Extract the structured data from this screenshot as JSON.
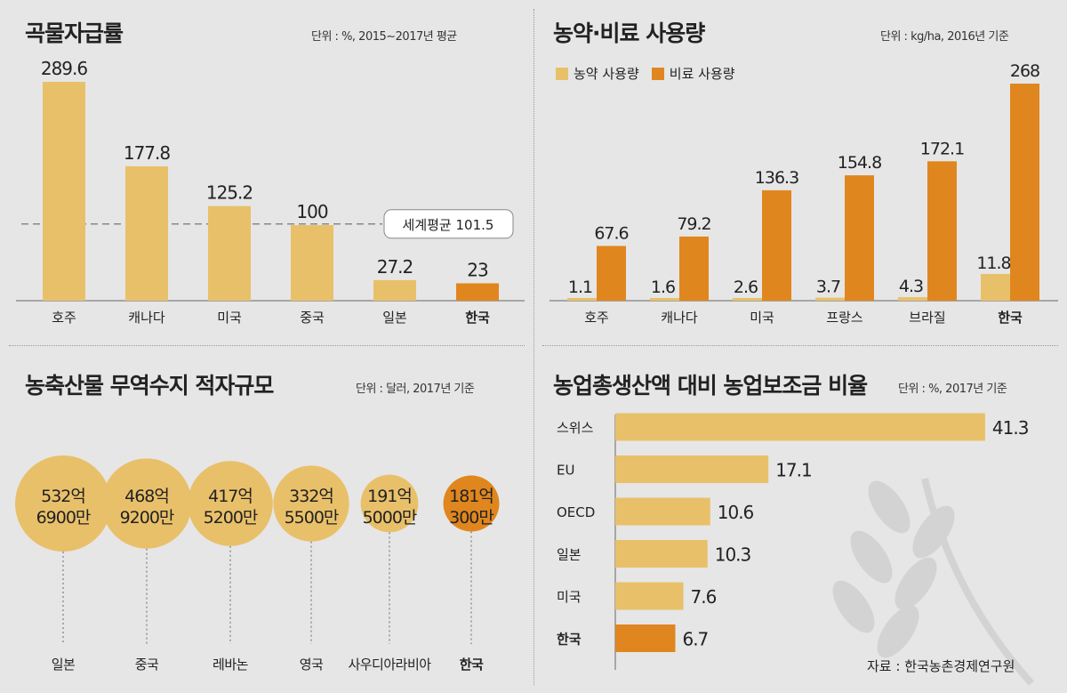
{
  "colors": {
    "light": "#e9c06a",
    "dark": "#e0861f",
    "bg": "#e6e6e6",
    "text": "#222222",
    "line": "#999999"
  },
  "chart_data": [
    {
      "id": "grain",
      "type": "bar",
      "title": "곡물자급률",
      "unit": "단위 : %, 2015∼2017년 평균",
      "categories": [
        "호주",
        "캐나다",
        "미국",
        "중국",
        "일본",
        "한국"
      ],
      "values": [
        289.6,
        177.8,
        125.2,
        100,
        27.2,
        23
      ],
      "value_labels": [
        "289.6",
        "177.8",
        "125.2",
        "100",
        "27.2",
        "23"
      ],
      "ylim": [
        0,
        300
      ],
      "reference": {
        "label": "세계평균 101.5",
        "value": 101.5
      },
      "highlight": "한국"
    },
    {
      "id": "fert",
      "type": "bar",
      "title": "농약·비료 사용량",
      "unit": "단위 : kg/ha, 2016년 기준",
      "categories": [
        "호주",
        "캐나다",
        "미국",
        "프랑스",
        "브라질",
        "한국"
      ],
      "series": [
        {
          "name": "농약 사용량",
          "values": [
            1.1,
            1.6,
            2.6,
            3.7,
            4.3,
            11.8
          ],
          "labels": [
            "1.1",
            "1.6",
            "2.6",
            "3.7",
            "4.3",
            "11.8"
          ]
        },
        {
          "name": "비료 사용량",
          "values": [
            67.6,
            79.2,
            136.3,
            154.8,
            172.1,
            268
          ],
          "labels": [
            "67.6",
            "79.2",
            "136.3",
            "154.8",
            "172.1",
            "268"
          ]
        }
      ],
      "ylim": [
        0,
        280
      ],
      "highlight": "한국"
    },
    {
      "id": "trade",
      "type": "bubble",
      "title": "농축산물 무역수지 적자규모",
      "unit": "단위 : 달러, 2017년 기준",
      "categories": [
        "일본",
        "중국",
        "레바논",
        "영국",
        "사우디아라비아",
        "한국"
      ],
      "values": [
        53269000000,
        46892000000,
        41752000000,
        33255000000,
        19150000000,
        18103000000
      ],
      "labels": [
        [
          "532억",
          "6900만"
        ],
        [
          "468억",
          "9200만"
        ],
        [
          "417억",
          "5200만"
        ],
        [
          "332억",
          "5500만"
        ],
        [
          "191억",
          "5000만"
        ],
        [
          "181억",
          "300만"
        ]
      ],
      "highlight": "한국"
    },
    {
      "id": "subsidy",
      "type": "bar",
      "orientation": "horizontal",
      "title": "농업총생산액 대비 농업보조금 비율",
      "unit": "단위 : %, 2017년 기준",
      "categories": [
        "스위스",
        "EU",
        "OECD",
        "일본",
        "미국",
        "한국"
      ],
      "values": [
        41.3,
        17.1,
        10.6,
        10.3,
        7.6,
        6.7
      ],
      "value_labels": [
        "41.3",
        "17.1",
        "10.6",
        "10.3",
        "7.6",
        "6.7"
      ],
      "xlim": [
        0,
        45
      ],
      "highlight": "한국",
      "source": "자료 : 한국농촌경제연구원"
    }
  ]
}
